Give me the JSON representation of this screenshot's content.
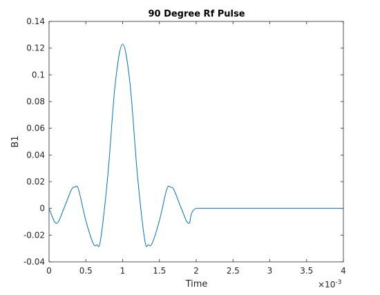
{
  "chart_data": {
    "type": "line",
    "title": "90 Degree Rf Pulse",
    "xlabel": "Time",
    "ylabel": "B1",
    "x_exponent": {
      "base": "×10",
      "power": "-3"
    },
    "xlim": [
      0,
      4
    ],
    "ylim": [
      -0.04,
      0.14
    ],
    "xticks": [
      0,
      0.5,
      1,
      1.5,
      2,
      2.5,
      3,
      3.5,
      4
    ],
    "xtick_labels": [
      "0",
      "0.5",
      "1",
      "1.5",
      "2",
      "2.5",
      "3",
      "3.5",
      "4"
    ],
    "yticks": [
      -0.04,
      -0.02,
      0,
      0.02,
      0.04,
      0.06,
      0.08,
      0.1,
      0.12,
      0.14
    ],
    "ytick_labels": [
      "-0.04",
      "-0.02",
      "0",
      "0.02",
      "0.04",
      "0.06",
      "0.08",
      "0.1",
      "0.12",
      "0.14"
    ],
    "grid": false,
    "line_color": "#0072bd",
    "series": [
      {
        "x": [
          0,
          0.1,
          0.2,
          0.3,
          0.35,
          0.4,
          0.5,
          0.6,
          0.65,
          0.7,
          0.8,
          0.9,
          1.0,
          1.1,
          1.2,
          1.3,
          1.35,
          1.4,
          1.5,
          1.6,
          1.65,
          1.7,
          1.8,
          1.9,
          2.0,
          2.5,
          3.0,
          3.5,
          4.0
        ],
        "values": [
          0,
          -0.0112,
          -0.0003,
          0.0136,
          0.0159,
          0.0143,
          -0.0091,
          -0.0262,
          -0.0273,
          -0.0235,
          0.0256,
          0.0936,
          0.123,
          0.0936,
          0.0256,
          -0.0235,
          -0.0273,
          -0.0262,
          -0.0091,
          0.0143,
          0.0159,
          0.0136,
          -0.0003,
          -0.0112,
          0,
          0,
          0,
          0,
          0
        ]
      }
    ]
  }
}
